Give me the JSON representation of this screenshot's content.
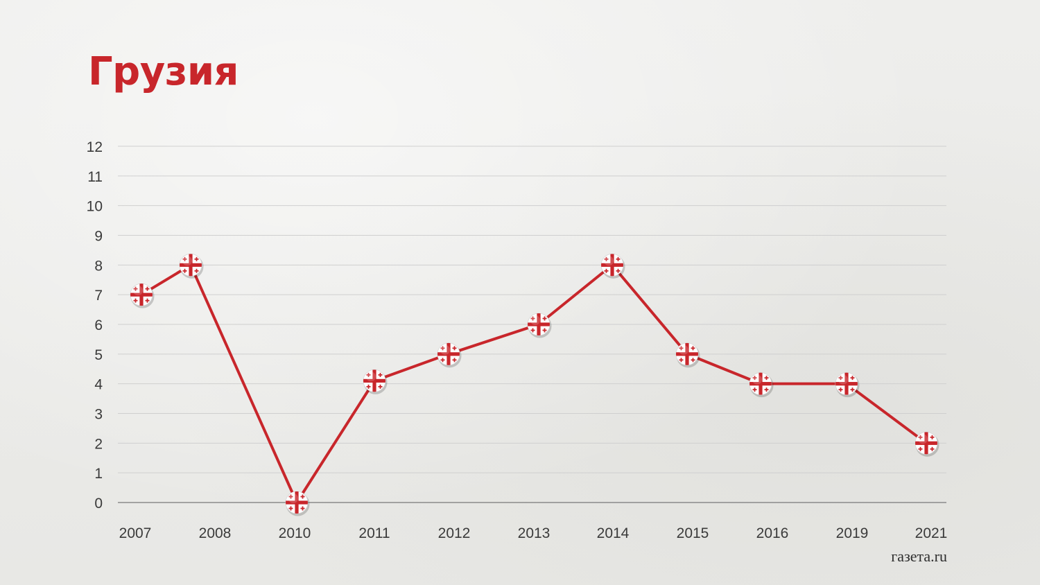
{
  "title": "Грузия",
  "source": "газета.ru",
  "colors": {
    "accent": "#c8262b",
    "line": "#c8262b",
    "grid": "#cfcfcf",
    "axis": "#8a8a8a",
    "text": "#3a3a3a"
  },
  "marker_icon": "georgia-flag-icon",
  "chart_data": {
    "type": "line",
    "categories": [
      "2007",
      "2008",
      "2010",
      "2011",
      "2012",
      "2013",
      "2014",
      "2015",
      "2016",
      "2019",
      "2021"
    ],
    "series": [
      {
        "values": [
          7,
          8,
          0,
          4.1,
          5,
          6,
          8,
          5,
          4,
          4,
          2
        ]
      }
    ],
    "y_ticks": [
      0,
      1,
      2,
      3,
      4,
      5,
      6,
      7,
      8,
      9,
      10,
      11,
      12
    ],
    "ylim": [
      0,
      12
    ],
    "grid": true,
    "xlabel": "",
    "ylabel": ""
  }
}
